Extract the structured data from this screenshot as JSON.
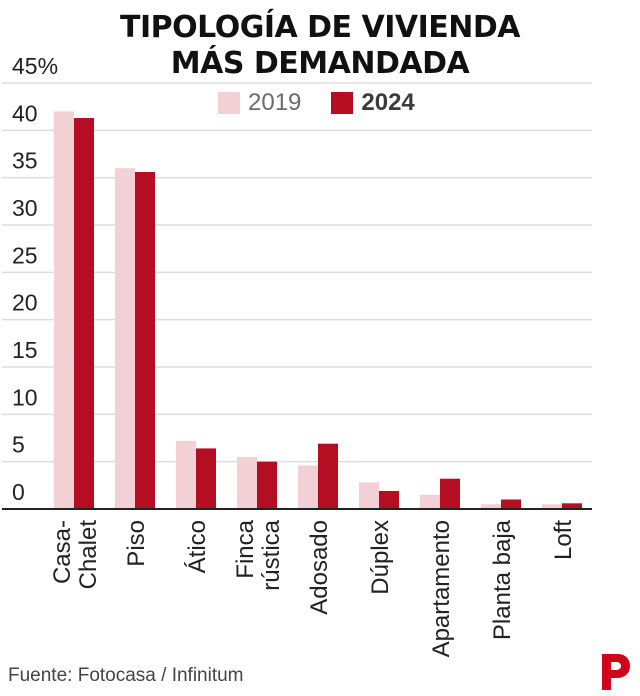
{
  "chart_data": {
    "type": "bar",
    "title": [
      "TIPOLOGÍA DE VIVIENDA",
      "MÁS DEMANDADA"
    ],
    "categories": [
      "Casa-\nChalet",
      "Piso",
      "Ático",
      "Finca\nrústica",
      "Adosado",
      "Dúplex",
      "Apartamento",
      "Planta baja",
      "Loft"
    ],
    "series": [
      {
        "name": "2019",
        "color": "#f2d0d5",
        "values": [
          42.0,
          36.0,
          7.2,
          5.5,
          4.6,
          2.8,
          1.5,
          0.5,
          0.5
        ]
      },
      {
        "name": "2024",
        "color": "#b50d22",
        "values": [
          41.3,
          35.6,
          6.4,
          5.0,
          6.9,
          1.9,
          3.2,
          1.0,
          0.6
        ]
      }
    ],
    "yticks": [
      "45%",
      "40",
      "35",
      "30",
      "25",
      "20",
      "15",
      "10",
      "5",
      "0"
    ],
    "ylim": [
      0,
      45
    ],
    "grid": true,
    "legend_position": "top"
  },
  "source": "Fuente: Fotocasa / Infinitum",
  "logo_letter": "P",
  "colors": {
    "accent": "#b50d22",
    "light": "#f2d0d5",
    "grid": "#dddddd",
    "axis": "#222222"
  }
}
